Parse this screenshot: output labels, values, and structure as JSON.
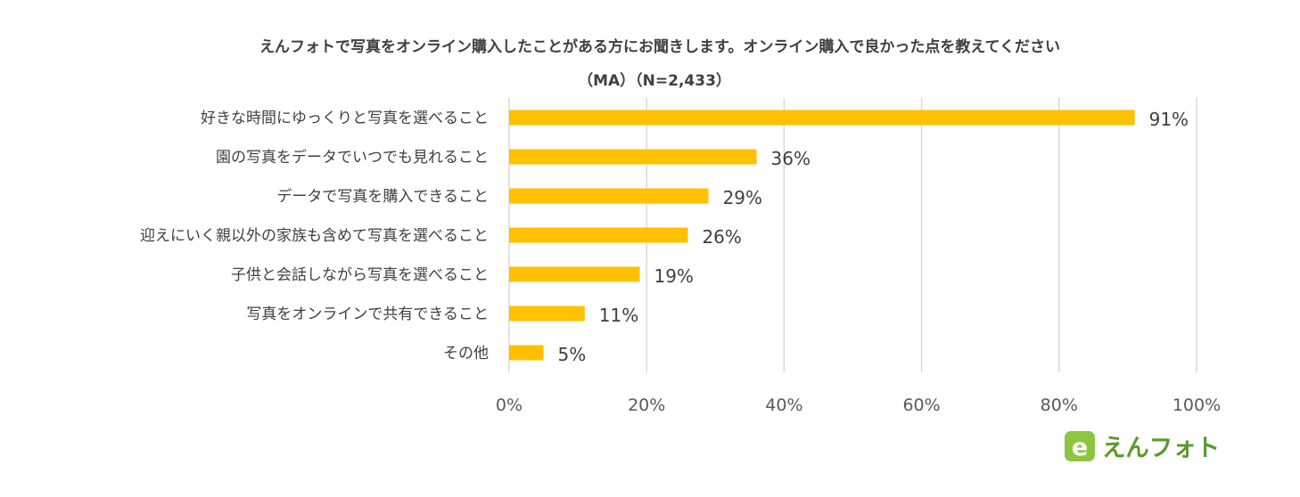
{
  "chart_data": {
    "type": "bar",
    "orientation": "horizontal",
    "title": "えんフォトで写真をオンライン購入したことがある方にお聞きします。オンライン購入で良かった点を教えてください",
    "subtitle": "（MA）（N=2,433）",
    "categories": [
      "好きな時間にゆっくりと写真を選べること",
      "園の写真をデータでいつでも見れること",
      "データで写真を購入できること",
      "迎えにいく親以外の家族も含めて写真を選べること",
      "子供と会話しながら写真を選べること",
      "写真をオンラインで共有できること",
      "その他"
    ],
    "values": [
      91,
      36,
      29,
      26,
      19,
      11,
      5
    ],
    "value_labels": [
      "91%",
      "36%",
      "29%",
      "26%",
      "19%",
      "11%",
      "5%"
    ],
    "xlim": [
      0,
      100
    ],
    "ticks": [
      0,
      20,
      40,
      60,
      80,
      100
    ],
    "tick_labels": [
      "0%",
      "20%",
      "40%",
      "60%",
      "80%",
      "100%"
    ],
    "grid": "vertical",
    "bar_color": "#FFC000",
    "xlabel": "",
    "ylabel": ""
  },
  "logo": {
    "text": "えんフォト",
    "letter": "e",
    "colors": {
      "green": "#8CC63F",
      "dark_green": "#5A9A2A",
      "blue": "#1E88C8"
    }
  }
}
